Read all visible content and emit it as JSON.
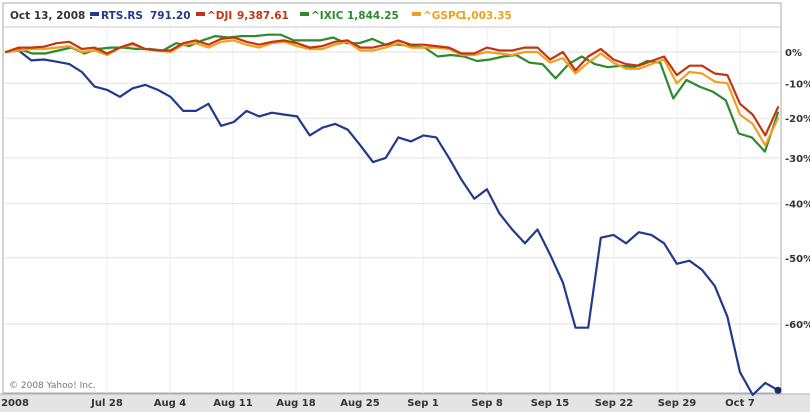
{
  "chart_data": {
    "type": "line",
    "date_label": "Oct 13, 2008 :",
    "credit": "© 2008 Yahoo! Inc.",
    "x_tick_labels": [
      "2008",
      "Jul 28",
      "Aug 4",
      "Aug 11",
      "Aug 18",
      "Aug 25",
      "Sep 1",
      "Sep 8",
      "Sep 15",
      "Sep 22",
      "Sep 29",
      "Oct 7"
    ],
    "y_ticks": [
      0,
      -10,
      -20,
      -30,
      -40,
      -50,
      -60
    ],
    "y_tick_labels": [
      "0%",
      "-10%",
      "-20%",
      "-30%",
      "-40%",
      "-50%",
      "-60%"
    ],
    "ylim": [
      -70,
      5
    ],
    "y_scale": "log",
    "grid": true,
    "legend_position": "top-left",
    "series": [
      {
        "name": "RTS.RS",
        "value": "791.20",
        "color": "#223a8c",
        "values": [
          0,
          0.5,
          -2.8,
          -2.5,
          -3.2,
          -4,
          -6.5,
          -11,
          -12,
          -14,
          -11.5,
          -10.5,
          -12,
          -14,
          -18,
          -18,
          -16,
          -22,
          -21,
          -18,
          -19.5,
          -18.5,
          -19,
          -19.5,
          -24.5,
          -22.5,
          -21.5,
          -23,
          -27,
          -31,
          -30,
          -25,
          -26,
          -24.5,
          -25,
          -30,
          -35,
          -39,
          -37,
          -42,
          -45,
          -47.5,
          -45,
          -49.5,
          -54,
          -60.5,
          -60.5,
          -46.5,
          -46,
          -47.5,
          -45.5,
          -46,
          -47.5,
          -51,
          -50.5,
          -52,
          -54.5,
          -59,
          -66,
          -68.5,
          -67.2,
          -68
        ]
      },
      {
        "name": "^DJI",
        "value": "9,387.61",
        "color": "#c23512",
        "values": [
          0,
          1.5,
          1.5,
          1.8,
          3,
          3.5,
          1,
          1.5,
          -0.5,
          1.5,
          3,
          1,
          0.5,
          0.5,
          3,
          4,
          2.5,
          4.5,
          5,
          3.5,
          2.5,
          3.5,
          4,
          3,
          1.5,
          2,
          3.5,
          4,
          1.5,
          1.5,
          2.5,
          4,
          2.5,
          2.5,
          2,
          1.5,
          -0.5,
          -0.5,
          1.5,
          0.5,
          0.5,
          1.5,
          1.5,
          -2.5,
          0,
          -6,
          -1.5,
          1,
          -2.5,
          -4,
          -4.5,
          -3,
          -1.5,
          -7.5,
          -4.5,
          -4.5,
          -7,
          -7.5,
          -16,
          -19,
          -24.5,
          -17
        ]
      },
      {
        "name": "^IXIC",
        "value": "1,844.25",
        "color": "#2d8a2d",
        "values": [
          0,
          1,
          -0.5,
          -0.5,
          0.5,
          1.5,
          -0.5,
          1,
          1.5,
          1.5,
          1,
          1,
          0.5,
          3,
          2,
          4,
          5.5,
          5,
          5.5,
          5.5,
          6,
          6,
          4,
          4,
          4,
          5,
          3,
          3,
          4.5,
          2.5,
          2.5,
          2,
          1.5,
          -1.5,
          -1,
          -1.5,
          -3,
          -2.5,
          -1.5,
          -1,
          -3.5,
          -4,
          -8.5,
          -4,
          -1.5,
          -4,
          -5,
          -4.5,
          -5,
          -3,
          -3.5,
          -14.5,
          -9,
          -11,
          -12.5,
          -15,
          -24,
          -25,
          -28.5,
          -18.5
        ]
      },
      {
        "name": "^GSPC",
        "value": "1,003.35",
        "color": "#f0a020",
        "values": [
          0,
          0.5,
          1,
          1,
          1.5,
          2,
          0,
          0.5,
          -1,
          1.5,
          2.5,
          1,
          0.5,
          0,
          2.5,
          3,
          1.5,
          3.5,
          4,
          2.5,
          1.5,
          3,
          3.5,
          2,
          1,
          1,
          2.5,
          3.5,
          0.5,
          0.5,
          1.5,
          3,
          1.5,
          1.5,
          1.5,
          1,
          -1,
          -1,
          0,
          -0.5,
          -1,
          0,
          0,
          -3.5,
          -2,
          -7,
          -3.5,
          -0.5,
          -3.5,
          -5.5,
          -5.5,
          -4,
          -2.5,
          -10,
          -6.5,
          -7,
          -9.5,
          -10,
          -19,
          -21.5,
          -27,
          -20
        ]
      }
    ]
  }
}
